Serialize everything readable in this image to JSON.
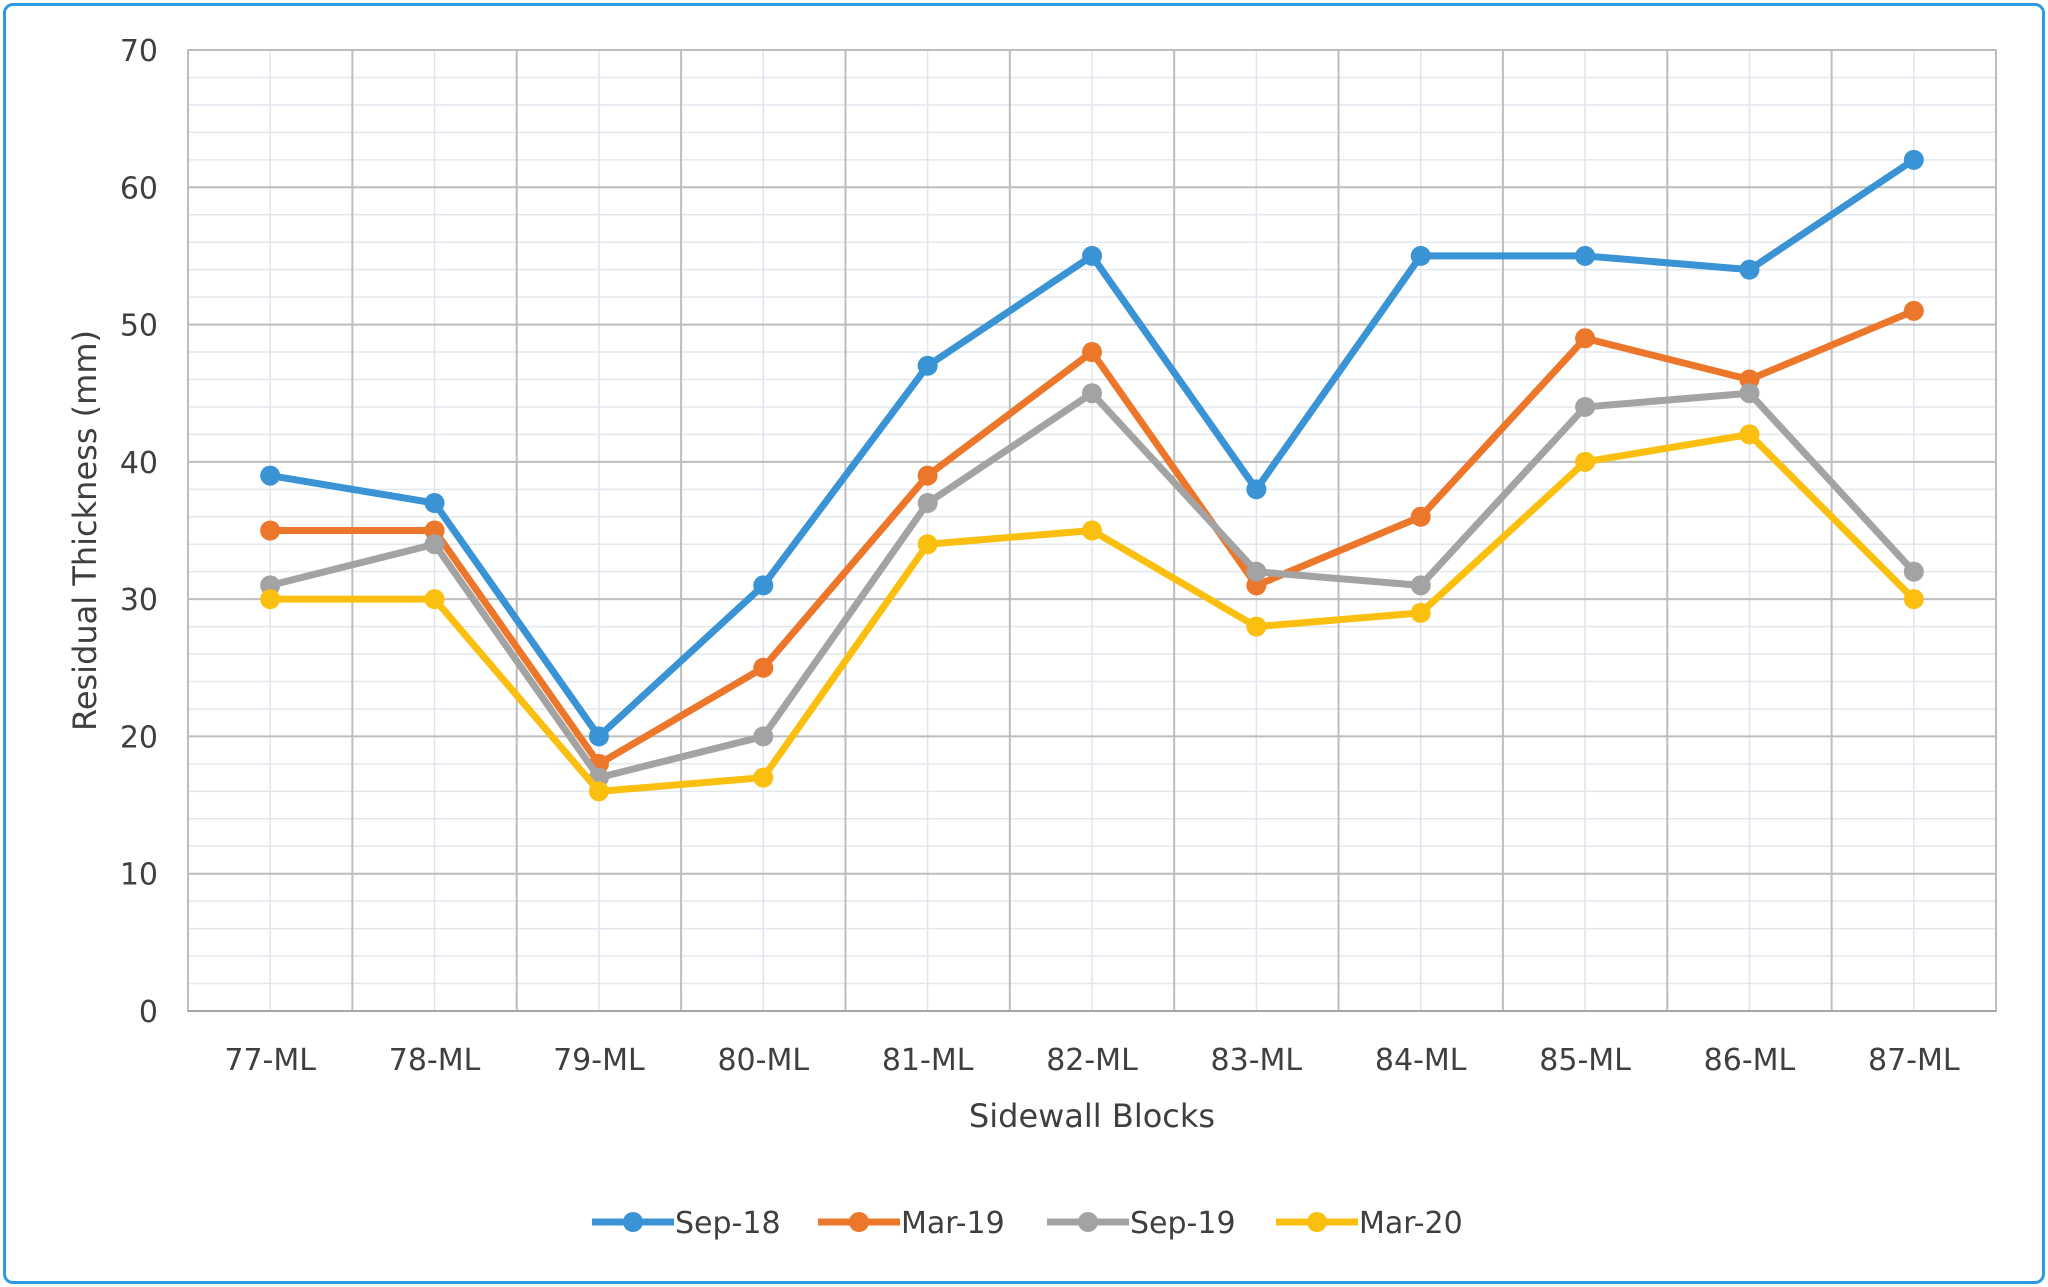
{
  "chart_data": {
    "type": "line",
    "title": "",
    "xlabel": "Sidewall Blocks",
    "ylabel": "Residual Thickness (mm)",
    "ylim": [
      0,
      70
    ],
    "yticks": [
      0,
      10,
      20,
      30,
      40,
      50,
      60,
      70
    ],
    "categories": [
      "77-ML",
      "78-ML",
      "79-ML",
      "80-ML",
      "81-ML",
      "82-ML",
      "83-ML",
      "84-ML",
      "85-ML",
      "86-ML",
      "87-ML"
    ],
    "grid": true,
    "legend_position": "bottom",
    "series": [
      {
        "name": "Sep-18",
        "color": "#3a93d4",
        "values": [
          39,
          37,
          20,
          31,
          47,
          55,
          38,
          55,
          55,
          54,
          62
        ]
      },
      {
        "name": "Mar-19",
        "color": "#ec7629",
        "values": [
          35,
          35,
          18,
          25,
          39,
          48,
          31,
          36,
          49,
          46,
          51
        ]
      },
      {
        "name": "Sep-19",
        "color": "#a3a3a3",
        "values": [
          31,
          34,
          17,
          20,
          37,
          45,
          32,
          31,
          44,
          45,
          32
        ]
      },
      {
        "name": "Mar-20",
        "color": "#fbbf10",
        "values": [
          30,
          30,
          16,
          17,
          34,
          35,
          28,
          29,
          40,
          42,
          30
        ]
      }
    ]
  }
}
